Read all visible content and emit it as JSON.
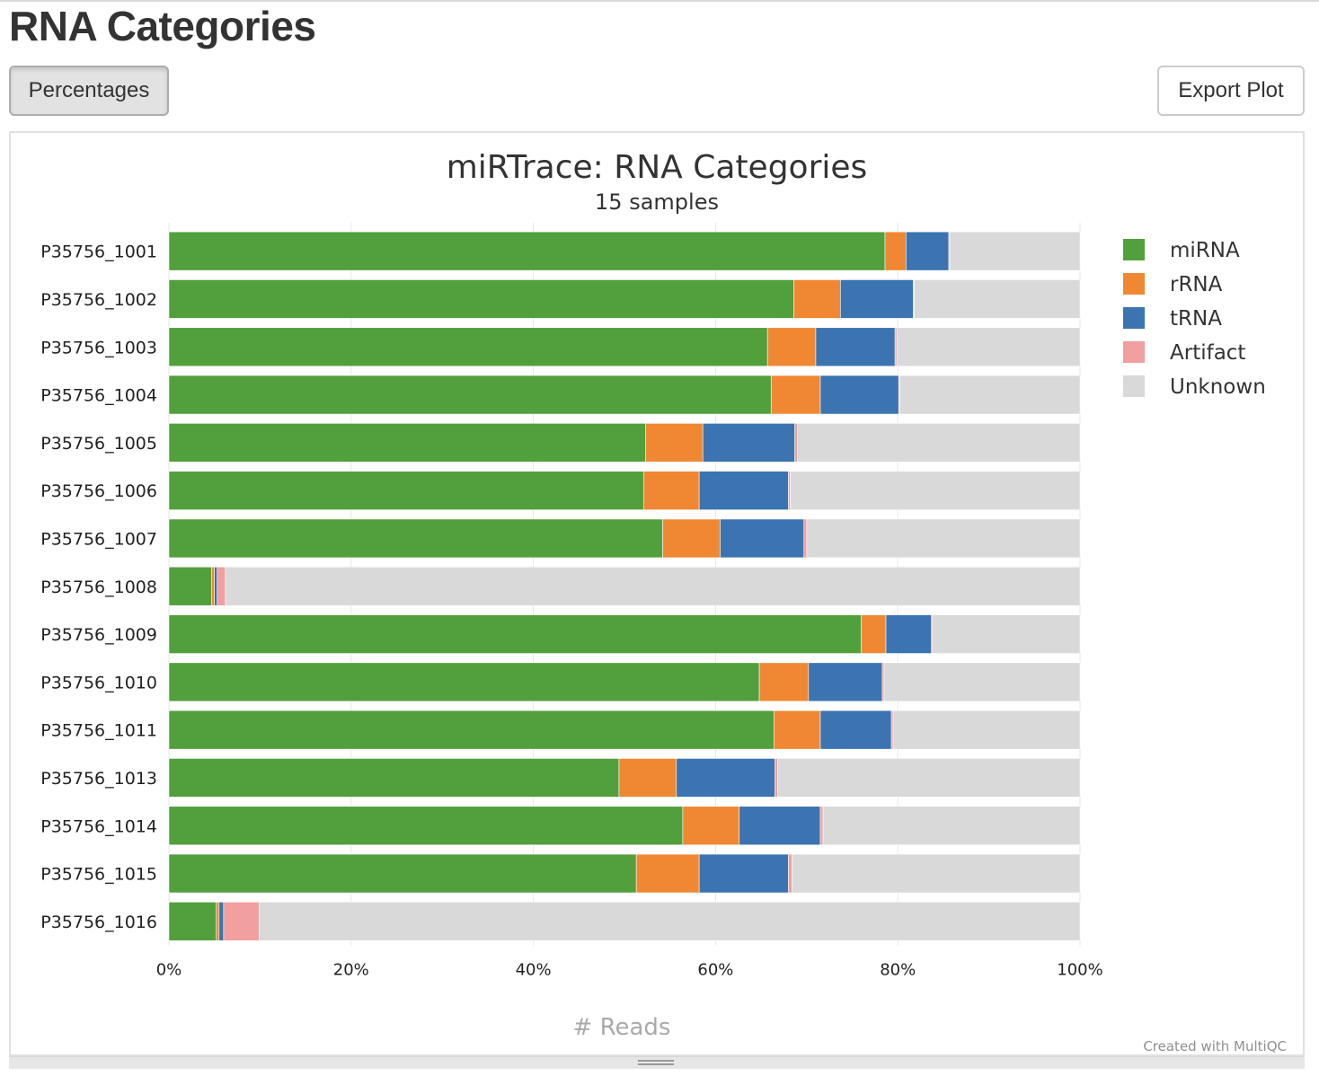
{
  "header": {
    "title": "RNA Categories"
  },
  "toolbar": {
    "percentages_label": "Percentages",
    "export_label": "Export Plot"
  },
  "colors": {
    "miRNA": "#529f3d",
    "rRNA": "#f08833",
    "tRNA": "#3b74b0",
    "Artifact": "#f0a09e",
    "Unknown": "#d9d9d9"
  },
  "chart_data": {
    "type": "bar",
    "orientation": "horizontal",
    "stacking": "percent",
    "title": "miRTrace: RNA Categories",
    "subtitle": "15 samples",
    "xlabel": "# Reads",
    "ylabel": "",
    "xlim": [
      0,
      100
    ],
    "x_ticks": [
      "0%",
      "20%",
      "40%",
      "60%",
      "80%",
      "100%"
    ],
    "grid": true,
    "legend_position": "right",
    "credit": "Created with MultiQC",
    "categories": [
      "P35756_1001",
      "P35756_1002",
      "P35756_1003",
      "P35756_1004",
      "P35756_1005",
      "P35756_1006",
      "P35756_1007",
      "P35756_1008",
      "P35756_1009",
      "P35756_1010",
      "P35756_1011",
      "P35756_1013",
      "P35756_1014",
      "P35756_1015",
      "P35756_1016"
    ],
    "series": [
      {
        "name": "miRNA",
        "values": [
          78.6,
          68.6,
          65.7,
          66.1,
          52.3,
          52.1,
          54.2,
          4.7,
          76.0,
          64.8,
          66.4,
          49.4,
          56.4,
          51.3,
          5.2
        ]
      },
      {
        "name": "rRNA",
        "values": [
          2.3,
          5.1,
          5.3,
          5.4,
          6.3,
          6.1,
          6.3,
          0.3,
          2.7,
          5.4,
          5.1,
          6.3,
          6.2,
          6.9,
          0.3
        ]
      },
      {
        "name": "tRNA",
        "values": [
          4.7,
          8.0,
          8.7,
          8.6,
          10.1,
          9.8,
          9.2,
          0.3,
          5.0,
          8.1,
          7.8,
          10.8,
          8.9,
          9.8,
          0.5
        ]
      },
      {
        "name": "Artifact",
        "values": [
          0.1,
          0.1,
          0.2,
          0.1,
          0.3,
          0.2,
          0.3,
          0.9,
          0.1,
          0.2,
          0.2,
          0.3,
          0.3,
          0.4,
          3.9
        ]
      },
      {
        "name": "Unknown",
        "values": [
          14.3,
          18.2,
          20.1,
          19.8,
          31.0,
          31.8,
          30.0,
          93.8,
          16.2,
          21.5,
          20.5,
          33.2,
          28.2,
          31.6,
          90.1
        ]
      }
    ]
  }
}
